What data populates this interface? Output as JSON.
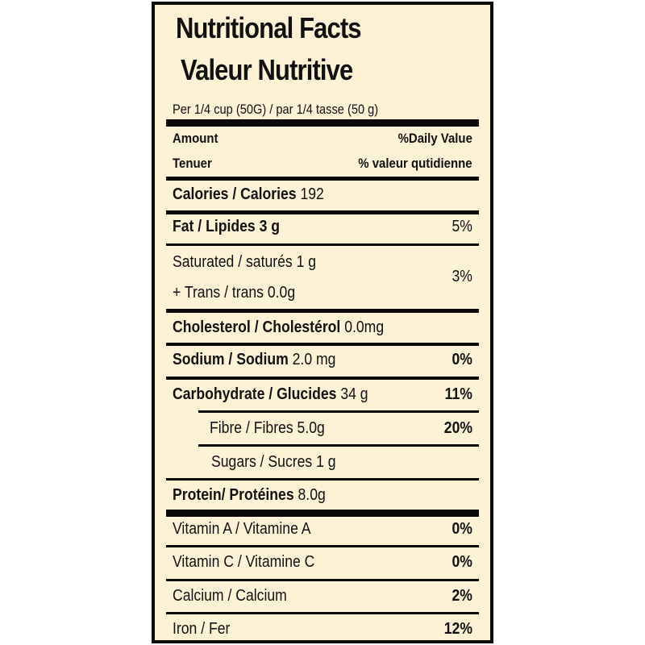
{
  "title_en": "Nutritional Facts",
  "title_fr": "Valeur Nutritive",
  "serving": "Per 1/4 cup (50G) / par 1/4 tasse (50 g)",
  "header": {
    "amount": "Amount",
    "daily_value": "%Daily Value",
    "amount_fr": "Tenuer",
    "daily_value_fr": "% valeur qutidienne"
  },
  "calories": {
    "label": "Calories / Calories",
    "value": "192"
  },
  "fat": {
    "label": "Fat / Lipides 3 g",
    "dv": "5%"
  },
  "saturated": {
    "label": "Saturated / saturés 1 g",
    "dv": "3%"
  },
  "trans": {
    "label": "+ Trans / trans 0.0g"
  },
  "cholesterol": {
    "label": "Cholesterol / Cholestérol",
    "value": "0.0mg"
  },
  "sodium": {
    "label": "Sodium / Sodium",
    "value": "2.0 mg",
    "dv": "0%"
  },
  "carbohydrate": {
    "label": "Carbohydrate / Glucides",
    "value": "34 g",
    "dv": "11%"
  },
  "fibre": {
    "label": "Fibre / Fibres 5.0g",
    "dv": "20%"
  },
  "sugars": {
    "label": "Sugars / Sucres  1 g"
  },
  "protein": {
    "label": "Protein/ Protéines",
    "value": "8.0g"
  },
  "vitamin_a": {
    "label": "Vitamin A / Vitamine A",
    "dv": "0%"
  },
  "vitamin_c": {
    "label": "Vitamin C / Vitamine C",
    "dv": "0%"
  },
  "calcium": {
    "label": "Calcium / Calcium",
    "dv": "2%"
  },
  "iron": {
    "label": "Iron / Fer",
    "dv": "12%"
  }
}
